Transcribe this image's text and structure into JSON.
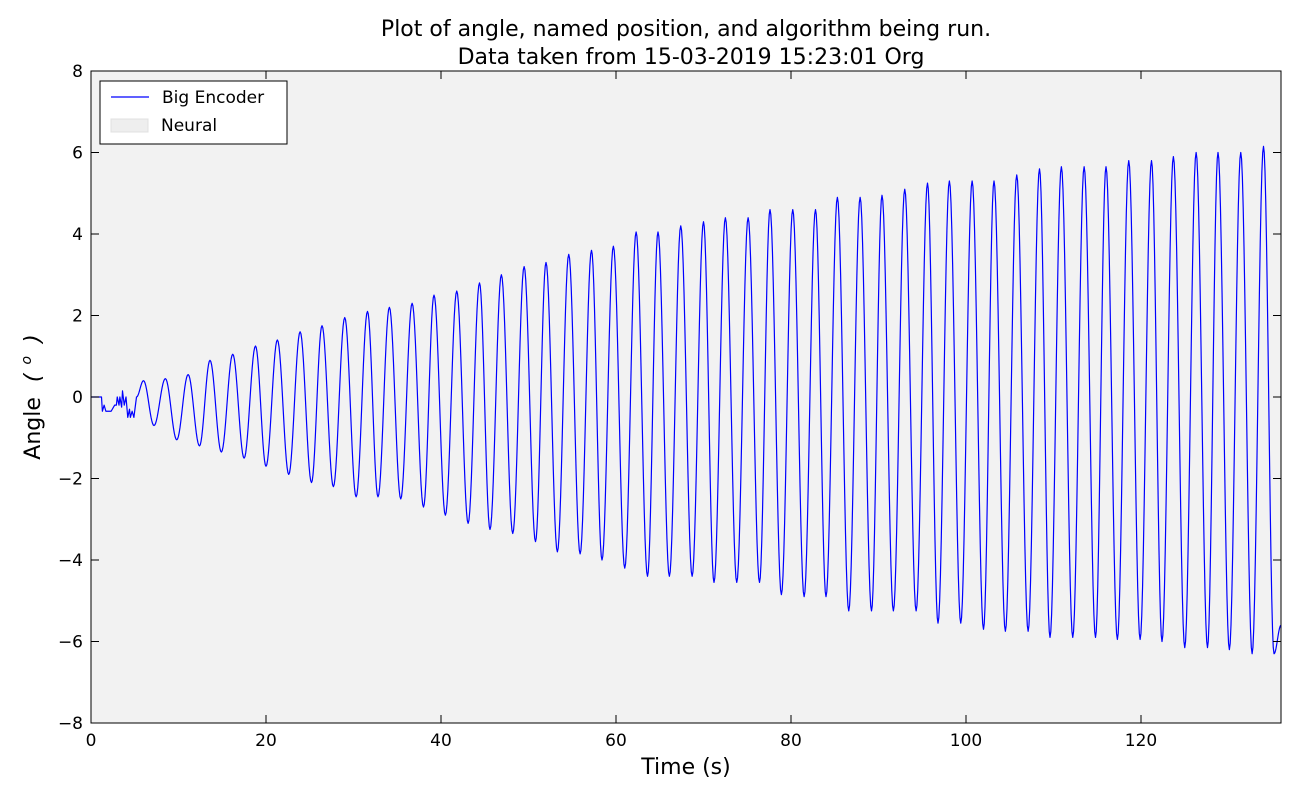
{
  "chart_data": {
    "type": "line",
    "title": "Plot of angle, named position, and algorithm being run.",
    "subtitle": "Data taken from 15-03-2019 15:23:01 Org",
    "xlabel": "Time (s)",
    "ylabel_main": "Angle",
    "ylabel_unit": "(",
    "ylabel_unit_sup": "o",
    "ylabel_unit_close": ")",
    "xlim": [
      0,
      136
    ],
    "ylim": [
      -8,
      8
    ],
    "xticks": [
      0,
      20,
      40,
      60,
      80,
      100,
      120
    ],
    "yticks": [
      8,
      6,
      4,
      2,
      0,
      -2,
      -4,
      -6,
      -8
    ],
    "ytick_labels": [
      "8",
      "6",
      "4",
      "2",
      "0",
      "−2",
      "−4",
      "−6",
      "−8"
    ],
    "plot_background": "#f2f2f2",
    "grid": false,
    "legend": {
      "placement": "top-left",
      "entries": [
        {
          "label": "Big Encoder",
          "kind": "line",
          "color": "#0000ff"
        },
        {
          "label": "Neural",
          "kind": "patch",
          "color": "#eeeeee"
        }
      ]
    },
    "series": [
      {
        "name": "Big Encoder",
        "color": "#0000ff",
        "oscillation": {
          "start_time": 5.2,
          "period": 2.565,
          "peaks": [
            {
              "t": 6.0,
              "y": 0.4
            },
            {
              "t": 8.5,
              "y": 0.45
            },
            {
              "t": 11.1,
              "y": 0.55
            },
            {
              "t": 13.6,
              "y": 0.9
            },
            {
              "t": 16.2,
              "y": 1.05
            },
            {
              "t": 18.8,
              "y": 1.25
            },
            {
              "t": 21.3,
              "y": 1.4
            },
            {
              "t": 23.9,
              "y": 1.6
            },
            {
              "t": 26.4,
              "y": 1.75
            },
            {
              "t": 29.0,
              "y": 1.95
            },
            {
              "t": 31.6,
              "y": 2.1
            },
            {
              "t": 34.1,
              "y": 2.2
            },
            {
              "t": 36.7,
              "y": 2.3
            },
            {
              "t": 39.2,
              "y": 2.5
            },
            {
              "t": 41.8,
              "y": 2.6
            },
            {
              "t": 44.4,
              "y": 2.8
            },
            {
              "t": 46.9,
              "y": 3.0
            },
            {
              "t": 49.5,
              "y": 3.2
            },
            {
              "t": 52.0,
              "y": 3.3
            },
            {
              "t": 54.6,
              "y": 3.5
            },
            {
              "t": 57.2,
              "y": 3.6
            },
            {
              "t": 59.7,
              "y": 3.7
            },
            {
              "t": 62.3,
              "y": 4.05
            },
            {
              "t": 64.8,
              "y": 4.05
            },
            {
              "t": 67.4,
              "y": 4.2
            },
            {
              "t": 70.0,
              "y": 4.3
            },
            {
              "t": 72.5,
              "y": 4.4
            },
            {
              "t": 75.1,
              "y": 4.4
            },
            {
              "t": 77.6,
              "y": 4.6
            },
            {
              "t": 80.2,
              "y": 4.6
            },
            {
              "t": 82.8,
              "y": 4.6
            },
            {
              "t": 85.3,
              "y": 4.9
            },
            {
              "t": 87.9,
              "y": 4.9
            },
            {
              "t": 90.4,
              "y": 4.95
            },
            {
              "t": 93.0,
              "y": 5.1
            },
            {
              "t": 95.6,
              "y": 5.25
            },
            {
              "t": 98.1,
              "y": 5.3
            },
            {
              "t": 100.7,
              "y": 5.3
            },
            {
              "t": 103.2,
              "y": 5.3
            },
            {
              "t": 105.8,
              "y": 5.45
            },
            {
              "t": 108.4,
              "y": 5.6
            },
            {
              "t": 110.9,
              "y": 5.65
            },
            {
              "t": 113.5,
              "y": 5.65
            },
            {
              "t": 116.0,
              "y": 5.65
            },
            {
              "t": 118.6,
              "y": 5.8
            },
            {
              "t": 121.2,
              "y": 5.8
            },
            {
              "t": 123.7,
              "y": 5.9
            },
            {
              "t": 126.3,
              "y": 6.0
            },
            {
              "t": 128.8,
              "y": 6.0
            },
            {
              "t": 131.4,
              "y": 6.0
            },
            {
              "t": 134.0,
              "y": 6.15
            }
          ],
          "troughs": [
            {
              "t": 7.2,
              "y": -0.7
            },
            {
              "t": 9.8,
              "y": -1.05
            },
            {
              "t": 12.4,
              "y": -1.2
            },
            {
              "t": 14.9,
              "y": -1.35
            },
            {
              "t": 17.5,
              "y": -1.5
            },
            {
              "t": 20.0,
              "y": -1.7
            },
            {
              "t": 22.6,
              "y": -1.9
            },
            {
              "t": 25.2,
              "y": -2.1
            },
            {
              "t": 27.7,
              "y": -2.2
            },
            {
              "t": 30.3,
              "y": -2.45
            },
            {
              "t": 32.8,
              "y": -2.45
            },
            {
              "t": 35.4,
              "y": -2.5
            },
            {
              "t": 38.0,
              "y": -2.7
            },
            {
              "t": 40.5,
              "y": -2.9
            },
            {
              "t": 43.1,
              "y": -3.1
            },
            {
              "t": 45.6,
              "y": -3.25
            },
            {
              "t": 48.2,
              "y": -3.35
            },
            {
              "t": 50.8,
              "y": -3.55
            },
            {
              "t": 53.3,
              "y": -3.8
            },
            {
              "t": 55.9,
              "y": -3.85
            },
            {
              "t": 58.4,
              "y": -4.0
            },
            {
              "t": 61.0,
              "y": -4.2
            },
            {
              "t": 63.6,
              "y": -4.4
            },
            {
              "t": 66.1,
              "y": -4.4
            },
            {
              "t": 68.7,
              "y": -4.4
            },
            {
              "t": 71.2,
              "y": -4.55
            },
            {
              "t": 73.8,
              "y": -4.55
            },
            {
              "t": 76.4,
              "y": -4.55
            },
            {
              "t": 78.9,
              "y": -4.85
            },
            {
              "t": 81.5,
              "y": -4.9
            },
            {
              "t": 84.0,
              "y": -4.9
            },
            {
              "t": 86.6,
              "y": -5.25
            },
            {
              "t": 89.2,
              "y": -5.25
            },
            {
              "t": 91.7,
              "y": -5.25
            },
            {
              "t": 94.3,
              "y": -5.25
            },
            {
              "t": 96.8,
              "y": -5.55
            },
            {
              "t": 99.4,
              "y": -5.55
            },
            {
              "t": 102.0,
              "y": -5.7
            },
            {
              "t": 104.5,
              "y": -5.75
            },
            {
              "t": 107.1,
              "y": -5.75
            },
            {
              "t": 109.6,
              "y": -5.9
            },
            {
              "t": 112.2,
              "y": -5.9
            },
            {
              "t": 114.8,
              "y": -5.9
            },
            {
              "t": 117.3,
              "y": -5.95
            },
            {
              "t": 119.9,
              "y": -5.95
            },
            {
              "t": 122.4,
              "y": -6.0
            },
            {
              "t": 125.0,
              "y": -6.15
            },
            {
              "t": 127.6,
              "y": -6.15
            },
            {
              "t": 130.1,
              "y": -6.2
            },
            {
              "t": 132.7,
              "y": -6.3
            },
            {
              "t": 135.2,
              "y": -6.3
            }
          ],
          "end_point": {
            "t": 136.0,
            "y": -5.6
          }
        },
        "startup_points": [
          {
            "t": 0.0,
            "y": 0.0
          },
          {
            "t": 1.2,
            "y": 0.0
          },
          {
            "t": 1.3,
            "y": -0.35
          },
          {
            "t": 1.5,
            "y": -0.2
          },
          {
            "t": 1.7,
            "y": -0.35
          },
          {
            "t": 2.3,
            "y": -0.35
          },
          {
            "t": 2.7,
            "y": -0.2
          },
          {
            "t": 2.9,
            "y": -0.2
          },
          {
            "t": 3.0,
            "y": 0.0
          },
          {
            "t": 3.2,
            "y": -0.2
          },
          {
            "t": 3.3,
            "y": 0.0
          },
          {
            "t": 3.5,
            "y": -0.25
          },
          {
            "t": 3.6,
            "y": 0.15
          },
          {
            "t": 3.8,
            "y": -0.2
          },
          {
            "t": 4.0,
            "y": 0.0
          },
          {
            "t": 4.2,
            "y": -0.5
          },
          {
            "t": 4.4,
            "y": -0.3
          },
          {
            "t": 4.5,
            "y": -0.5
          },
          {
            "t": 4.7,
            "y": -0.35
          },
          {
            "t": 4.9,
            "y": -0.5
          },
          {
            "t": 5.2,
            "y": 0.0
          }
        ]
      }
    ]
  }
}
